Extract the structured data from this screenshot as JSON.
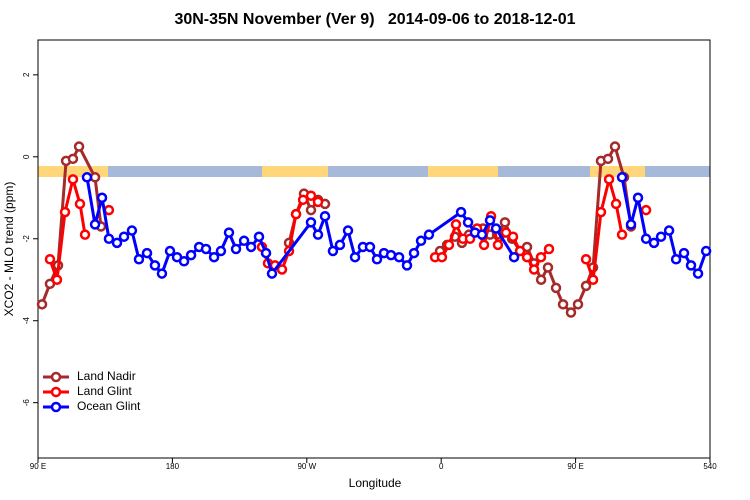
{
  "chart_data": {
    "type": "line",
    "title": "30N-35N November (Ver 9)   2014-09-06 to 2018-12-01",
    "x_label": "Longitude",
    "y_label": "XCO2 - MLO trend (ppm)",
    "xlim": [
      90,
      540
    ],
    "xticks": [
      {
        "value": 90,
        "label": "90 E"
      },
      180,
      {
        "value": 270,
        "label": "90 W"
      },
      {
        "value": 360,
        "label": "0"
      },
      {
        "value": 450,
        "label": "90 E"
      },
      540
    ],
    "ylim": [
      -7.35,
      2.85
    ],
    "yticks": [
      -6,
      -4,
      -2,
      0,
      2
    ],
    "legend": "bottomleft",
    "series": [
      {
        "name": "Land Nadir",
        "color": "#a52a2a",
        "x": [
          92.7,
          98,
          103.4,
          108.8,
          113.4,
          117.5,
          128.2,
          132.2,
          null,
          258.1,
          262.8,
          268.1,
          272.8,
          277.5,
          282.2,
          null,
          359.2,
          363.9,
          369.2,
          373.9,
          378.6,
          383.3,
          388,
          392.7,
          397.4,
          402.7,
          407.5,
          412.8,
          417.5,
          422.2,
          426.9,
          431.5,
          436.9,
          441.6,
          446.9,
          451.6,
          457,
          461.7,
          467,
          471.7,
          476.4,
          482.4,
          487.1
        ],
        "values": [
          -3.6,
          -3.1,
          -2.65,
          -0.1,
          -0.05,
          0.25,
          -0.5,
          -1.7,
          null,
          -2.1,
          -1.4,
          -0.9,
          -1.3,
          -1.05,
          -1.15,
          null,
          -2.3,
          -2.15,
          -1.95,
          -2.1,
          -1.9,
          -1.8,
          -1.75,
          -1.9,
          -1.9,
          -1.6,
          -2.0,
          -2.3,
          -2.2,
          -2.6,
          -3.0,
          -2.7,
          -3.2,
          -3.6,
          -3.8,
          -3.6,
          -3.15,
          -2.7,
          -0.1,
          -0.05,
          0.25,
          -0.5,
          -1.7
        ]
      },
      {
        "name": "Land Glint",
        "color": "#ff0000",
        "x": [
          98,
          102.7,
          108.1,
          113.4,
          118.1,
          121.5,
          null,
          137.5,
          null,
          240,
          244,
          248.7,
          253.4,
          258.1,
          262.8,
          267.5,
          272.8,
          277.5,
          null,
          355.9,
          360.5,
          365.2,
          369.9,
          374.6,
          379.3,
          384,
          388.7,
          393.4,
          398,
          403.4,
          408.1,
          412.8,
          417.5,
          422.2,
          426.8,
          432.2,
          null,
          457,
          461.7,
          467,
          472.4,
          477.1,
          481.1,
          null,
          497.2
        ],
        "values": [
          -2.5,
          -3.0,
          -1.35,
          -0.55,
          -1.15,
          -1.9,
          null,
          -1.3,
          null,
          -2.2,
          -2.6,
          -2.65,
          -2.75,
          -2.3,
          -1.4,
          -1.05,
          -0.95,
          -1.1,
          null,
          -2.45,
          -2.45,
          -2.15,
          -1.65,
          -2.0,
          -2.0,
          -1.75,
          -2.15,
          -1.45,
          -2.15,
          -1.85,
          -1.95,
          -2.3,
          -2.45,
          -2.75,
          -2.45,
          -2.25,
          null,
          -2.5,
          -3.0,
          -1.35,
          -0.55,
          -1.15,
          -1.9,
          null,
          -1.3
        ]
      },
      {
        "name": "Ocean Glint",
        "color": "#0000ff",
        "x": [
          122.8,
          128.2,
          132.9,
          137.5,
          142.9,
          147.6,
          152.9,
          157.6,
          163,
          168.3,
          173,
          178.4,
          183.1,
          187.8,
          192.5,
          197.9,
          202.5,
          207.9,
          212.5,
          217.9,
          222.6,
          228,
          232.7,
          238,
          242.7,
          246.7,
          272.8,
          277.5,
          282.2,
          287.5,
          292.2,
          297.6,
          302.3,
          307.6,
          312.3,
          317,
          321.7,
          326.4,
          331.8,
          337.1,
          341.8,
          346.5,
          351.8,
          373.3,
          378,
          382.6,
          387.3,
          392.7,
          396.7,
          408.8,
          null,
          481.1,
          487.1,
          491.8,
          497.2,
          502.5,
          507.2,
          512.6,
          517.3,
          522.6,
          527.3,
          532,
          537.4
        ],
        "values": [
          -0.5,
          -1.65,
          -1.0,
          -2.0,
          -2.1,
          -1.95,
          -1.8,
          -2.5,
          -2.35,
          -2.65,
          -2.85,
          -2.3,
          -2.45,
          -2.55,
          -2.4,
          -2.2,
          -2.25,
          -2.45,
          -2.3,
          -1.85,
          -2.25,
          -2.05,
          -2.2,
          -1.95,
          -2.35,
          -2.85,
          -1.6,
          -1.9,
          -1.45,
          -2.3,
          -2.15,
          -1.8,
          -2.45,
          -2.2,
          -2.2,
          -2.5,
          -2.35,
          -2.4,
          -2.45,
          -2.65,
          -2.35,
          -2.05,
          -1.9,
          -1.35,
          -1.6,
          -1.85,
          -1.9,
          -1.55,
          -1.75,
          -2.45,
          null,
          -0.5,
          -1.65,
          -1.0,
          -2.0,
          -2.1,
          -1.95,
          -1.8,
          -2.5,
          -2.35,
          -2.65,
          -2.85,
          -2.3
        ]
      }
    ]
  }
}
